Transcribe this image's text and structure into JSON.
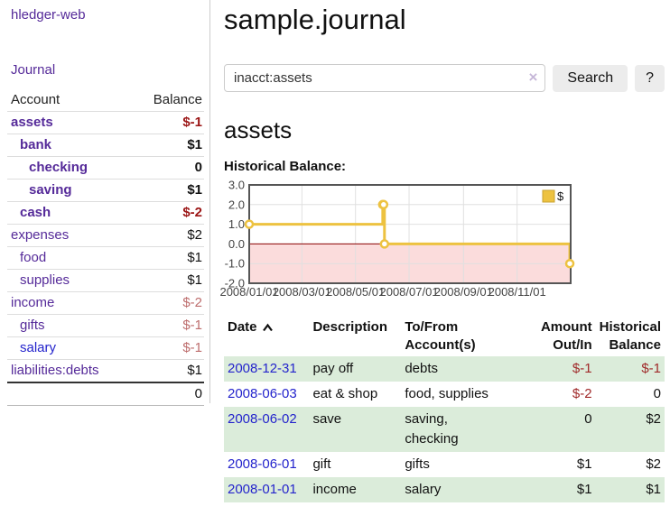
{
  "app_title": "hledger-web",
  "nav": {
    "journal": "Journal"
  },
  "sidebar": {
    "headers": {
      "account": "Account",
      "balance": "Balance"
    },
    "rows": [
      {
        "account": "assets",
        "balance": "$-1",
        "indent": 0,
        "bold": true,
        "balance_style": "neg-strong",
        "link": "purple"
      },
      {
        "account": "bank",
        "balance": "$1",
        "indent": 1,
        "bold": true,
        "balance_style": "pos",
        "link": "purple"
      },
      {
        "account": "checking",
        "balance": "0",
        "indent": 2,
        "bold": true,
        "balance_style": "pos",
        "link": "purple"
      },
      {
        "account": "saving",
        "balance": "$1",
        "indent": 2,
        "bold": true,
        "balance_style": "pos",
        "link": "purple"
      },
      {
        "account": "cash",
        "balance": "$-2",
        "indent": 1,
        "bold": true,
        "balance_style": "neg-strong",
        "link": "purple"
      },
      {
        "account": "expenses",
        "balance": "$2",
        "indent": 0,
        "bold": false,
        "balance_style": "pos",
        "link": "purple"
      },
      {
        "account": "food",
        "balance": "$1",
        "indent": 1,
        "bold": false,
        "balance_style": "pos",
        "link": "purple"
      },
      {
        "account": "supplies",
        "balance": "$1",
        "indent": 1,
        "bold": false,
        "balance_style": "pos",
        "link": "purple"
      },
      {
        "account": "income",
        "balance": "$-2",
        "indent": 0,
        "bold": false,
        "balance_style": "neg-soft",
        "link": "purple"
      },
      {
        "account": "gifts",
        "balance": "$-1",
        "indent": 1,
        "bold": false,
        "balance_style": "neg-soft",
        "link": "purple"
      },
      {
        "account": "salary",
        "balance": "$-1",
        "indent": 1,
        "bold": false,
        "balance_style": "neg-soft",
        "link": "blue"
      },
      {
        "account": "liabilities:debts",
        "balance": "$1",
        "indent": 0,
        "bold": false,
        "balance_style": "pos",
        "link": "purple"
      }
    ],
    "total": "0"
  },
  "main": {
    "title": "sample.journal",
    "search": {
      "value": "inacct:assets",
      "clear": "×",
      "search_button": "Search",
      "help_button": "?"
    },
    "account_heading": "assets",
    "chart_heading": "Historical Balance:"
  },
  "chart_data": {
    "type": "line",
    "title": "Historical Balance",
    "series": [
      {
        "name": "$",
        "color": "#edc240",
        "step": true,
        "points": [
          {
            "date": "2008-01-01",
            "day": 0,
            "value": 1
          },
          {
            "date": "2008-06-01",
            "day": 152,
            "value": 2
          },
          {
            "date": "2008-06-02",
            "day": 153,
            "value": 2
          },
          {
            "date": "2008-06-03",
            "day": 154,
            "value": 0
          },
          {
            "date": "2008-12-31",
            "day": 365,
            "value": -1
          }
        ]
      }
    ],
    "x_ticks": [
      {
        "day": 0,
        "label": "2008/01/01"
      },
      {
        "day": 60,
        "label": "2008/03/01"
      },
      {
        "day": 121,
        "label": "2008/05/01"
      },
      {
        "day": 182,
        "label": "2008/07/01"
      },
      {
        "day": 244,
        "label": "2008/09/01"
      },
      {
        "day": 305,
        "label": "2008/11/01"
      }
    ],
    "y_ticks": [
      3.0,
      2.0,
      1.0,
      0.0,
      -1.0,
      -2.0
    ],
    "ylim": [
      -2,
      3
    ],
    "xlim_days": [
      0,
      366
    ],
    "grid": true,
    "negative_fill": "#fbdcdc",
    "zero_line_color": "#8b0000",
    "legend_position": "top-right",
    "legend_label": "$"
  },
  "transactions": {
    "headers": {
      "date": "Date",
      "description": "Description",
      "accounts": "To/From Account(s)",
      "amount": "Amount Out/In",
      "balance": "Historical Balance"
    },
    "rows": [
      {
        "date": "2008-12-31",
        "description": "pay off",
        "accounts": "debts",
        "amount": "$-1",
        "amount_neg": true,
        "balance": "$-1",
        "balance_neg": true
      },
      {
        "date": "2008-06-03",
        "description": "eat & shop",
        "accounts": "food, supplies",
        "amount": "$-2",
        "amount_neg": true,
        "balance": "0",
        "balance_neg": false
      },
      {
        "date": "2008-06-02",
        "description": "save",
        "accounts": "saving,\nchecking",
        "amount": "0",
        "amount_neg": false,
        "balance": "$2",
        "balance_neg": false
      },
      {
        "date": "2008-06-01",
        "description": "gift",
        "accounts": "gifts",
        "amount": "$1",
        "amount_neg": false,
        "balance": "$2",
        "balance_neg": false
      },
      {
        "date": "2008-01-01",
        "description": "income",
        "accounts": "salary",
        "amount": "$1",
        "amount_neg": false,
        "balance": "$1",
        "balance_neg": false
      }
    ]
  }
}
